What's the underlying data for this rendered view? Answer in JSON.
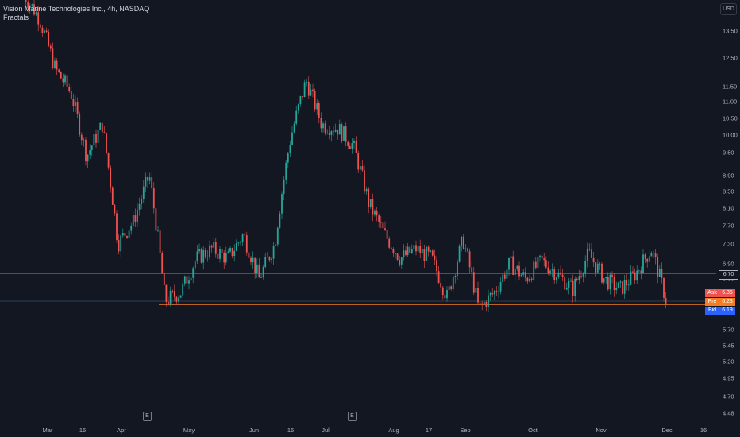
{
  "legend": {
    "title": "Vision Marine Technologies Inc., 4h, NASDAQ",
    "indicator": "Fractals"
  },
  "currency": "USD",
  "colors": {
    "background": "#131722",
    "up": "#26a69a",
    "down": "#ef5350",
    "horizontal_line": "#4a6e82",
    "bid_line": "#3a4d6a",
    "pre_line": "#f57c20",
    "ask": "#ef5350",
    "pre": "#f57c20",
    "bid": "#2962ff"
  },
  "price_tags": [
    {
      "label": "Ask",
      "value": "6.35",
      "color": "#ef5350"
    },
    {
      "label": "Pre",
      "value": "6.23",
      "color": "#f57c20"
    },
    {
      "label": "Bid",
      "value": "6.19",
      "color": "#2962ff"
    }
  ],
  "line_tag": {
    "value": "6.70"
  },
  "earnings_markers": [
    "E",
    "E"
  ],
  "chart_data": {
    "type": "candlestick",
    "title": "Vision Marine Technologies Inc., 4h, NASDAQ",
    "indicator": "Fractals",
    "y_scale": "log",
    "ylim": [
      4.35,
      15.2
    ],
    "y_ticks": [
      "13.50",
      "12.50",
      "11.50",
      "11.00",
      "10.50",
      "10.00",
      "9.50",
      "8.90",
      "8.50",
      "8.10",
      "7.70",
      "7.30",
      "6.90",
      "6.60",
      "5.70",
      "5.45",
      "5.20",
      "4.95",
      "4.70",
      "4.48"
    ],
    "x_ticks": [
      "Mar",
      "16",
      "Apr",
      "May",
      "Jun",
      "16",
      "Jul",
      "Aug",
      "17",
      "Sep",
      "Oct",
      "Nov",
      "Dec",
      "16"
    ],
    "horizontal_lines": [
      6.7,
      6.19,
      6.13
    ],
    "grid": false,
    "path": [
      {
        "t": "late Feb",
        "p": 15.0
      },
      {
        "t": "Feb-end",
        "p": 14.0
      },
      {
        "t": "early Mar",
        "p": 12.1
      },
      {
        "t": "Mar",
        "p": 11.3
      },
      {
        "t": "Mar",
        "p": 9.4
      },
      {
        "t": "mid Mar",
        "p": 10.3
      },
      {
        "t": "late Mar",
        "p": 7.3
      },
      {
        "t": "early Apr",
        "p": 7.8
      },
      {
        "t": "early Apr",
        "p": 8.9
      },
      {
        "t": "Apr",
        "p": 6.2
      },
      {
        "t": "Apr",
        "p": 6.35
      },
      {
        "t": "late Apr",
        "p": 7.0
      },
      {
        "t": "early May",
        "p": 7.2
      },
      {
        "t": "May",
        "p": 7.0
      },
      {
        "t": "mid May",
        "p": 7.5
      },
      {
        "t": "late May",
        "p": 6.6
      },
      {
        "t": "late May",
        "p": 7.3
      },
      {
        "t": "Jun",
        "p": 9.9
      },
      {
        "t": "Jun",
        "p": 11.7
      },
      {
        "t": "mid Jun",
        "p": 10.3
      },
      {
        "t": "late Jun",
        "p": 10.2
      },
      {
        "t": "early Jul",
        "p": 9.7
      },
      {
        "t": "Jul",
        "p": 8.2
      },
      {
        "t": "mid Jul",
        "p": 7.5
      },
      {
        "t": "late Jul",
        "p": 7.0
      },
      {
        "t": "Aug",
        "p": 7.2
      },
      {
        "t": "Aug",
        "p": 7.0
      },
      {
        "t": "mid Aug",
        "p": 6.25
      },
      {
        "t": "late Aug",
        "p": 7.4
      },
      {
        "t": "late Aug",
        "p": 6.05
      },
      {
        "t": "early Sep",
        "p": 6.35
      },
      {
        "t": "Sep",
        "p": 6.9
      },
      {
        "t": "mid Sep",
        "p": 6.6
      },
      {
        "t": "late Sep",
        "p": 6.95
      },
      {
        "t": "Oct",
        "p": 6.7
      },
      {
        "t": "Oct",
        "p": 6.4
      },
      {
        "t": "late Oct",
        "p": 7.1
      },
      {
        "t": "Nov",
        "p": 6.6
      },
      {
        "t": "Nov",
        "p": 6.4
      },
      {
        "t": "mid Nov",
        "p": 6.7
      },
      {
        "t": "late Nov",
        "p": 7.2
      },
      {
        "t": "Dec",
        "p": 6.15
      }
    ]
  }
}
